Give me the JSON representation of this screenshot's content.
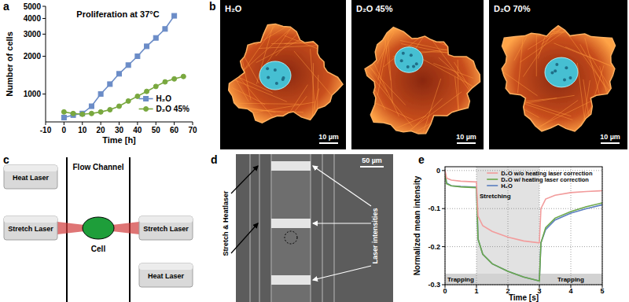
{
  "panel_labels": [
    "a",
    "b",
    "c",
    "d",
    "e"
  ],
  "chart_data": [
    {
      "type": "line",
      "title": "Proliferation at 37°C",
      "x_label": "Time [h]",
      "y_label": "Number of cells",
      "x": [
        0,
        5,
        10,
        15,
        20,
        25,
        30,
        35,
        40,
        45,
        50,
        55,
        60,
        65
      ],
      "series": [
        {
          "name": "H₂O",
          "color": "#6b8cc7",
          "marker": "square",
          "line_style": "solid",
          "values": [
            650,
            680,
            700,
            800,
            1000,
            1200,
            1450,
            1700,
            2000,
            2400,
            2800,
            3300,
            4200,
            null
          ]
        },
        {
          "name": "D₂O 45%",
          "color": "#79a83f",
          "marker": "circle",
          "line_style": "solid",
          "values": [
            720,
            700,
            690,
            700,
            720,
            750,
            800,
            880,
            960,
            1050,
            1150,
            1250,
            1320,
            1380
          ]
        }
      ],
      "xlim": [
        -10,
        70
      ],
      "xticks": [
        -10,
        0,
        10,
        20,
        30,
        40,
        50,
        60,
        70
      ],
      "ylim": [
        600,
        5000
      ],
      "yticks": [
        1000,
        2000,
        3000,
        4000,
        5000
      ],
      "log": "y",
      "grid": false,
      "legend": "bottom-right"
    },
    {
      "type": "line",
      "x_label": "Time [s]",
      "y_label": "Normalized mean intensity",
      "x": [
        0,
        0.05,
        0.2,
        0.5,
        1.0,
        1.05,
        1.2,
        1.5,
        2.0,
        2.5,
        3.0,
        3.05,
        3.2,
        3.5,
        4.0,
        4.5,
        5.0
      ],
      "series": [
        {
          "name": "D₂O w/o heating laser correction",
          "color": "#f29c9c",
          "line_style": "solid",
          "values": [
            0,
            -0.02,
            -0.025,
            -0.028,
            -0.03,
            -0.12,
            -0.145,
            -0.16,
            -0.175,
            -0.185,
            -0.19,
            -0.1,
            -0.075,
            -0.065,
            -0.058,
            -0.055,
            -0.053
          ]
        },
        {
          "name": "D₂O w/ heating laser correction",
          "color": "#6ca84a",
          "line_style": "solid",
          "values": [
            -0.005,
            -0.035,
            -0.04,
            -0.043,
            -0.045,
            -0.18,
            -0.22,
            -0.245,
            -0.265,
            -0.28,
            -0.29,
            -0.19,
            -0.15,
            -0.125,
            -0.108,
            -0.095,
            -0.085
          ]
        },
        {
          "name": "H₂O",
          "color": "#5b7fc0",
          "line_style": "solid",
          "values": [
            -0.005,
            -0.033,
            -0.04,
            -0.042,
            -0.044,
            -0.18,
            -0.22,
            -0.245,
            -0.265,
            -0.28,
            -0.29,
            -0.19,
            -0.155,
            -0.13,
            -0.112,
            -0.1,
            -0.09
          ]
        }
      ],
      "xlim": [
        0,
        5
      ],
      "xticks": [
        0,
        1,
        2,
        3,
        4,
        5
      ],
      "ylim": [
        -0.3,
        0.01
      ],
      "yticks": [
        -0.3,
        -0.2,
        -0.1,
        0
      ],
      "grid": true,
      "legend": "top-right",
      "regions": [
        {
          "label": "Trapping",
          "x0": 0,
          "x1": 1
        },
        {
          "label": "Stretching",
          "x0": 1,
          "x1": 3
        },
        {
          "label": "Trapping",
          "x0": 3,
          "x1": 5
        }
      ]
    }
  ],
  "panel_b": {
    "images": [
      {
        "title": "H₂O",
        "scale_bar": "10 µm"
      },
      {
        "title": "D₂O 45%",
        "scale_bar": "10 µm"
      },
      {
        "title": "D₂O 70%",
        "scale_bar": "10 µm"
      }
    ]
  },
  "panel_c": {
    "heat_laser": "Heat Laser",
    "stretch_laser": "Stretch Laser",
    "flow_channel": "Flow Channel",
    "cell": "Cell"
  },
  "panel_d": {
    "scale_bar": "50 µm",
    "stretch_heat": "Stretch & Heatlaser",
    "intensities": "Laser intensities"
  }
}
